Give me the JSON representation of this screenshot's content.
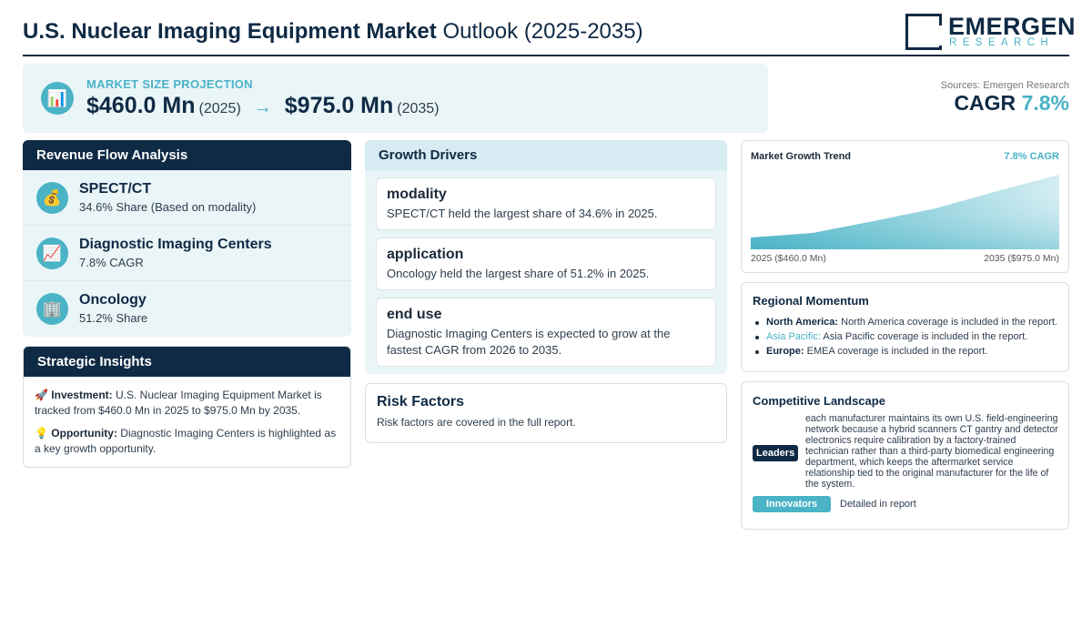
{
  "header": {
    "title_bold": "U.S. Nuclear Imaging Equipment Market",
    "title_rest": "Outlook (2025-2035)",
    "logo_name": "EMERGEN",
    "logo_sub": "RESEARCH"
  },
  "projection": {
    "icon": "bar-chart-icon",
    "label": "MARKET SIZE PROJECTION",
    "start_value": "$460.0 Mn",
    "start_year": "(2025)",
    "arrow": "→",
    "end_value": "$975.0 Mn",
    "end_year": "(2035)"
  },
  "sources": {
    "text": "Sources: Emergen Research",
    "cagr_label": "CAGR",
    "cagr_value": "7.8%"
  },
  "revenue_flow": {
    "title": "Revenue Flow Analysis",
    "items": [
      {
        "icon": "money-bag-icon",
        "glyph": "💰",
        "name": "SPECT/CT",
        "detail": "34.6% Share (Based on modality)"
      },
      {
        "icon": "trend-chart-icon",
        "glyph": "📈",
        "name": "Diagnostic Imaging Centers",
        "detail": "7.8% CAGR"
      },
      {
        "icon": "building-icon",
        "glyph": "🏢",
        "name": "Oncology",
        "detail": "51.2% Share"
      }
    ]
  },
  "strategic_insights": {
    "title": "Strategic Insights",
    "investment_icon": "🚀",
    "investment_label": "Investment:",
    "investment_text": "U.S. Nuclear Imaging Equipment Market is tracked from $460.0 Mn in 2025 to $975.0 Mn by 2035.",
    "opportunity_icon": "💡",
    "opportunity_label": "Opportunity:",
    "opportunity_text": "Diagnostic Imaging Centers is highlighted as a key growth opportunity."
  },
  "growth_drivers": {
    "title": "Growth Drivers",
    "cards": [
      {
        "title": "modality",
        "text": "SPECT/CT held the largest share of 34.6% in 2025."
      },
      {
        "title": "application",
        "text": "Oncology held the largest share of 51.2% in 2025."
      },
      {
        "title": "end use",
        "text": "Diagnostic Imaging Centers is expected to grow at the fastest CAGR from 2026 to 2035."
      }
    ]
  },
  "risk_factors": {
    "title": "Risk Factors",
    "text": "Risk factors are covered in the full report."
  },
  "market_trend": {
    "title": "Market Growth Trend",
    "cagr": "7.8% CAGR",
    "start_label": "2025 ($460.0 Mn)",
    "end_label": "2035 ($975.0 Mn)",
    "fill_color_light": "#d4edf3",
    "fill_color_dark": "#4ab3c6"
  },
  "regional_momentum": {
    "title": "Regional Momentum",
    "items": [
      {
        "region": "North America:",
        "text": "North America coverage is included in the report."
      },
      {
        "region": "Asia Pacific:",
        "text": "Asia Pacific coverage is included in the report."
      },
      {
        "region": "Europe:",
        "text": "EMEA coverage is included in the report."
      }
    ]
  },
  "competitive_landscape": {
    "title": "Competitive Landscape",
    "leaders_label": "Leaders",
    "leaders_text": "each manufacturer maintains its own U.S. field-engineering network because a hybrid scanners CT gantry and detector electronics require calibration by a factory-trained technician rather than a third-party biomedical engineering department, which keeps the aftermarket service relationship tied to the original manufacturer for the life of the system.",
    "innovators_label": "Innovators",
    "innovators_text": "Detailed in report"
  },
  "colors": {
    "navy": "#0f2a44",
    "accent": "#4ab3c6",
    "panel_bg": "#eaf5f8"
  }
}
